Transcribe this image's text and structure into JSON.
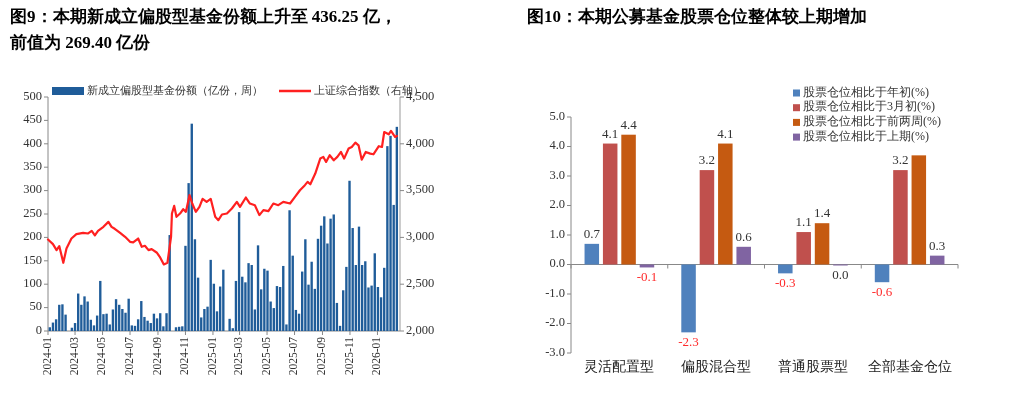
{
  "chart_data": [
    {
      "type": "bar",
      "title": "图9：本期新成立偏股型基金份额上升至 436.25 亿，前值为 269.40 亿份",
      "legend": "top",
      "x": [
        "2024-01-05",
        "2024-01-12",
        "2024-01-19",
        "2024-01-26",
        "2024-02-02",
        "2024-02-09",
        "2024-02-16",
        "2024-02-23",
        "2024-03-01",
        "2024-03-08",
        "2024-03-15",
        "2024-03-22",
        "2024-03-29",
        "2024-04-05",
        "2024-04-12",
        "2024-04-19",
        "2024-04-26",
        "2024-05-03",
        "2024-05-10",
        "2024-05-17",
        "2024-05-24",
        "2024-05-31",
        "2024-06-07",
        "2024-06-14",
        "2024-06-21",
        "2024-06-28",
        "2024-07-05",
        "2024-07-12",
        "2024-07-19",
        "2024-07-26",
        "2024-08-02",
        "2024-08-09",
        "2024-08-16",
        "2024-08-23",
        "2024-08-30",
        "2024-09-06",
        "2024-09-13",
        "2024-09-20",
        "2024-09-27",
        "2024-10-04",
        "2024-10-11",
        "2024-10-18",
        "2024-10-25",
        "2024-11-01",
        "2024-11-08",
        "2024-11-15",
        "2024-11-22",
        "2024-11-29",
        "2024-12-06",
        "2024-12-13",
        "2024-12-20",
        "2024-12-27",
        "2025-01-03",
        "2025-01-10",
        "2025-01-17",
        "2025-01-24",
        "2025-01-31",
        "2025-02-07",
        "2025-02-14",
        "2025-02-21",
        "2025-02-28",
        "2025-03-07",
        "2025-03-14",
        "2025-03-21",
        "2025-03-28",
        "2025-04-04",
        "2025-04-11",
        "2025-04-18",
        "2025-04-25",
        "2025-05-02",
        "2025-05-09",
        "2025-05-16",
        "2025-05-23",
        "2025-05-30",
        "2025-06-06",
        "2025-06-13",
        "2025-06-20",
        "2025-06-27",
        "2025-07-04",
        "2025-07-11",
        "2025-07-18",
        "2025-07-25",
        "2025-08-01",
        "2025-08-08",
        "2025-08-15",
        "2025-08-22",
        "2025-08-29",
        "2025-09-05",
        "2025-09-12",
        "2025-09-19",
        "2025-09-26",
        "2025-10-03",
        "2025-10-10",
        "2025-10-17",
        "2025-10-24",
        "2025-10-31",
        "2025-11-07",
        "2025-11-14",
        "2025-11-21",
        "2025-11-28",
        "2025-12-05",
        "2025-12-12",
        "2025-12-19",
        "2025-12-26",
        "2026-01-02",
        "2026-01-09",
        "2026-01-16",
        "2026-01-23",
        "2026-01-30",
        "2026-02-06",
        "2026-02-13"
      ],
      "series": [
        {
          "name": "新成立偏股型基金份额（亿份，周）",
          "color": "#1f5c99",
          "values": [
            8,
            18,
            25,
            56,
            57,
            35,
            0,
            7,
            17,
            80,
            56,
            74,
            63,
            24,
            12,
            33,
            107,
            36,
            37,
            14,
            46,
            68,
            56,
            47,
            39,
            69,
            12,
            11,
            25,
            64,
            30,
            22,
            17,
            37,
            27,
            38,
            10,
            38,
            205,
            0,
            8,
            9,
            10,
            182,
            316,
            443,
            196,
            114,
            29,
            47,
            52,
            152,
            101,
            42,
            95,
            131,
            0,
            26,
            6,
            107,
            254,
            116,
            104,
            145,
            141,
            46,
            183,
            89,
            133,
            129,
            63,
            49,
            96,
            94,
            139,
            14,
            258,
            161,
            45,
            37,
            127,
            196,
            99,
            148,
            90,
            197,
            225,
            245,
            187,
            240,
            249,
            60,
            11,
            87,
            137,
            321,
            220,
            141,
            223,
            141,
            149,
            93,
            97,
            166,
            94,
            72,
            135,
            395,
            417,
            269.4,
            436.25
          ]
        },
        {
          "name": "上证综合指数（右轴）",
          "type": "line",
          "axis": "y2",
          "color": "#ff2020",
          "x": [
            "2024-01-01",
            "2024-01-12",
            "2024-01-20",
            "2024-01-26",
            "2024-02-04",
            "2024-02-11",
            "2024-02-22",
            "2024-03-04",
            "2024-03-19",
            "2024-03-30",
            "2024-04-07",
            "2024-04-14",
            "2024-04-21",
            "2024-05-03",
            "2024-05-14",
            "2024-05-21",
            "2024-05-28",
            "2024-06-09",
            "2024-06-20",
            "2024-07-01",
            "2024-07-08",
            "2024-07-19",
            "2024-07-27",
            "2024-08-03",
            "2024-08-11",
            "2024-08-18",
            "2024-08-29",
            "2024-09-05",
            "2024-09-14",
            "2024-09-22",
            "2024-09-30",
            "2024-10-02",
            "2024-10-07",
            "2024-10-12",
            "2024-10-20",
            "2024-10-27",
            "2024-11-02",
            "2024-11-10",
            "2024-11-16",
            "2024-11-24",
            "2024-12-02",
            "2024-12-09",
            "2024-12-18",
            "2024-12-27",
            "2025-01-06",
            "2025-01-13",
            "2025-01-21",
            "2025-02-01",
            "2025-02-12",
            "2025-02-23",
            "2025-03-02",
            "2025-03-15",
            "2025-03-24",
            "2025-04-04",
            "2025-04-14",
            "2025-04-23",
            "2025-05-04",
            "2025-05-15",
            "2025-05-26",
            "2025-06-06",
            "2025-06-21",
            "2025-07-02",
            "2025-07-13",
            "2025-07-24",
            "2025-07-30",
            "2025-08-05",
            "2025-08-16",
            "2025-08-27",
            "2025-09-03",
            "2025-09-09",
            "2025-09-17",
            "2025-09-26",
            "2025-10-04",
            "2025-10-12",
            "2025-10-19",
            "2025-10-29",
            "2025-11-05",
            "2025-11-13",
            "2025-11-20",
            "2025-11-27",
            "2025-12-06",
            "2025-12-16",
            "2025-12-23",
            "2026-01-04",
            "2026-01-11",
            "2026-01-16",
            "2026-01-26",
            "2026-01-31",
            "2026-02-09",
            "2026-02-13"
          ],
          "values": [
            2978,
            2928,
            2864,
            2907,
            2729,
            2882,
            2988,
            3035,
            3049,
            3042,
            3070,
            3021,
            3070,
            3113,
            3166,
            3113,
            3092,
            3049,
            3006,
            2953,
            2946,
            2988,
            2900,
            2910,
            2864,
            2875,
            2839,
            2793,
            2711,
            2729,
            3006,
            3255,
            3337,
            3220,
            3255,
            3301,
            3273,
            3451,
            3362,
            3273,
            3326,
            3412,
            3380,
            3412,
            3220,
            3184,
            3245,
            3255,
            3309,
            3380,
            3326,
            3426,
            3362,
            3344,
            3238,
            3291,
            3280,
            3362,
            3344,
            3380,
            3362,
            3433,
            3504,
            3558,
            3593,
            3568,
            3682,
            3842,
            3860,
            3806,
            3878,
            3824,
            3860,
            3913,
            3842,
            3949,
            3966,
            4013,
            3984,
            3831,
            3913,
            3895,
            3888,
            3974,
            3966,
            4126,
            4101,
            4137,
            4073,
            4084
          ]
        }
      ],
      "xlim": [
        "2024-01-01",
        "2026-02-20"
      ],
      "xticks": [
        {
          "value": "2024-01-01",
          "label": "2024-01"
        },
        {
          "value": "2024-03-01",
          "label": "2024-03"
        },
        {
          "value": "2024-05-01",
          "label": "2024-05"
        },
        {
          "value": "2024-07-01",
          "label": "2024-07"
        },
        {
          "value": "2024-09-01",
          "label": "2024-09"
        },
        {
          "value": "2024-11-01",
          "label": "2024-11"
        },
        {
          "value": "2025-01-01",
          "label": "2025-01"
        },
        {
          "value": "2025-03-01",
          "label": "2025-03"
        },
        {
          "value": "2025-05-01",
          "label": "2025-05"
        },
        {
          "value": "2025-07-01",
          "label": "2025-07"
        },
        {
          "value": "2025-09-01",
          "label": "2025-09"
        },
        {
          "value": "2025-11-01",
          "label": "2025-11"
        },
        {
          "value": "2026-01-01",
          "label": "2026-01"
        }
      ],
      "ylim": [
        0,
        500
      ],
      "yticks": [
        0,
        50,
        100,
        150,
        200,
        250,
        300,
        350,
        400,
        450,
        500
      ],
      "y2lim": [
        2000,
        4500
      ],
      "y2ticks": [
        {
          "value": 2000,
          "label": "2,000"
        },
        {
          "value": 2500,
          "label": "2,500"
        },
        {
          "value": 3000,
          "label": "3,000"
        },
        {
          "value": 3500,
          "label": "3,500"
        },
        {
          "value": 4000,
          "label": "4,000"
        },
        {
          "value": 4500,
          "label": "4,500"
        }
      ]
    },
    {
      "type": "bar",
      "title": "图10：本期公募基金股票仓位整体较上期增加",
      "legend": "top right",
      "categories": [
        "灵活配置型",
        "偏股混合型",
        "普通股票型",
        "全部基金仓位"
      ],
      "series": [
        {
          "name": "股票仓位相比于年初(%)",
          "color": "#4f81bd",
          "values": [
            0.7,
            -2.3,
            -0.3,
            -0.6
          ],
          "value_labels": [
            "0.7",
            "-2.3",
            "-0.3",
            "-0.6"
          ]
        },
        {
          "name": "股票仓位相比于3月初(%)",
          "color": "#c0504d",
          "values": [
            4.1,
            3.2,
            1.1,
            3.2
          ],
          "value_labels": [
            "4.1",
            "3.2",
            "1.1",
            "3.2"
          ]
        },
        {
          "name": "股票仓位相比于前两周(%)",
          "color": "#c55a11",
          "values": [
            4.4,
            4.1,
            1.4,
            3.7
          ],
          "value_labels": [
            "4.4",
            "4.1",
            "1.4",
            null
          ]
        },
        {
          "name": "股票仓位相比于上期(%)",
          "color": "#8064a2",
          "values": [
            -0.1,
            0.6,
            0.0,
            0.3
          ],
          "value_labels": [
            "-0.1",
            "0.6",
            "0.0",
            "0.3"
          ]
        }
      ],
      "ylim": [
        -3,
        5
      ],
      "yticks": [
        {
          "value": -3,
          "label": "-3.0"
        },
        {
          "value": -2,
          "label": "-2.0"
        },
        {
          "value": -1,
          "label": "-1.0"
        },
        {
          "value": 0,
          "label": "0.0"
        },
        {
          "value": 1,
          "label": "1.0"
        },
        {
          "value": 2,
          "label": "2.0"
        },
        {
          "value": 3,
          "label": "3.0"
        },
        {
          "value": 4,
          "label": "4.0"
        },
        {
          "value": 5,
          "label": "5.0"
        }
      ]
    }
  ]
}
